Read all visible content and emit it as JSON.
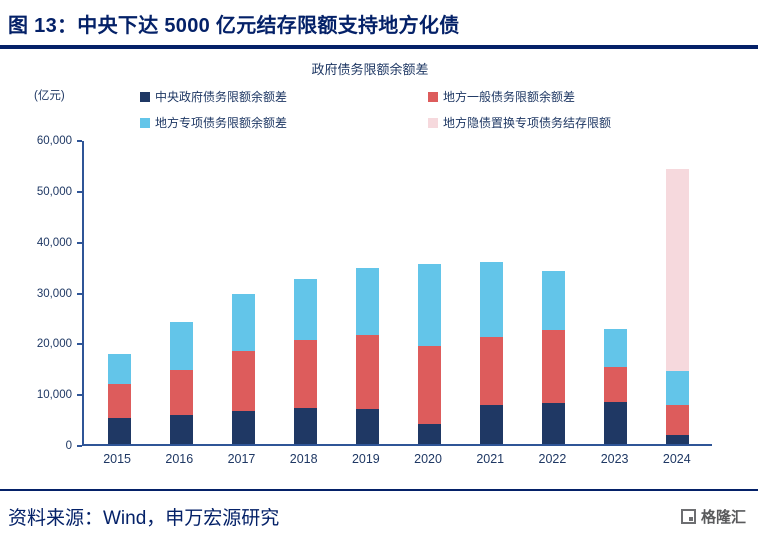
{
  "header": {
    "title": "图 13：中央下达 5000 亿元结存限额支持地方化债"
  },
  "chart_data": {
    "type": "bar",
    "stacked": true,
    "title": "政府债务限额余额差",
    "unit_label": "(亿元)",
    "categories": [
      "2015",
      "2016",
      "2017",
      "2018",
      "2019",
      "2020",
      "2021",
      "2022",
      "2023",
      "2024"
    ],
    "series": [
      {
        "name": "中央政府债务限额余额差",
        "color": "#1F3864",
        "values": [
          5200,
          5800,
          6500,
          7200,
          7000,
          4000,
          7700,
          8200,
          8300,
          1800
        ]
      },
      {
        "name": "地方一般债务限额余额差",
        "color": "#DD5C5C",
        "values": [
          6600,
          8900,
          12000,
          13300,
          14500,
          15500,
          13400,
          14300,
          6900,
          5900
        ]
      },
      {
        "name": "地方专项债务限额余额差",
        "color": "#63C5E9",
        "values": [
          6000,
          9500,
          11200,
          12200,
          13300,
          16200,
          14900,
          11700,
          7500,
          6700
        ]
      },
      {
        "name": "地方隐债置换专项债务结存限额",
        "color": "#F6D9DD",
        "values": [
          0,
          0,
          0,
          0,
          0,
          0,
          0,
          0,
          0,
          40100
        ]
      }
    ],
    "ylim": [
      0,
      60000
    ],
    "yticks": [
      60000,
      50000,
      40000,
      30000,
      20000,
      10000,
      0
    ],
    "grid": false,
    "legend_position": "top",
    "axis_color": "#2F5597"
  },
  "footer": {
    "source": "资料来源：Wind，申万宏源研究",
    "logo_text": "格隆汇"
  }
}
